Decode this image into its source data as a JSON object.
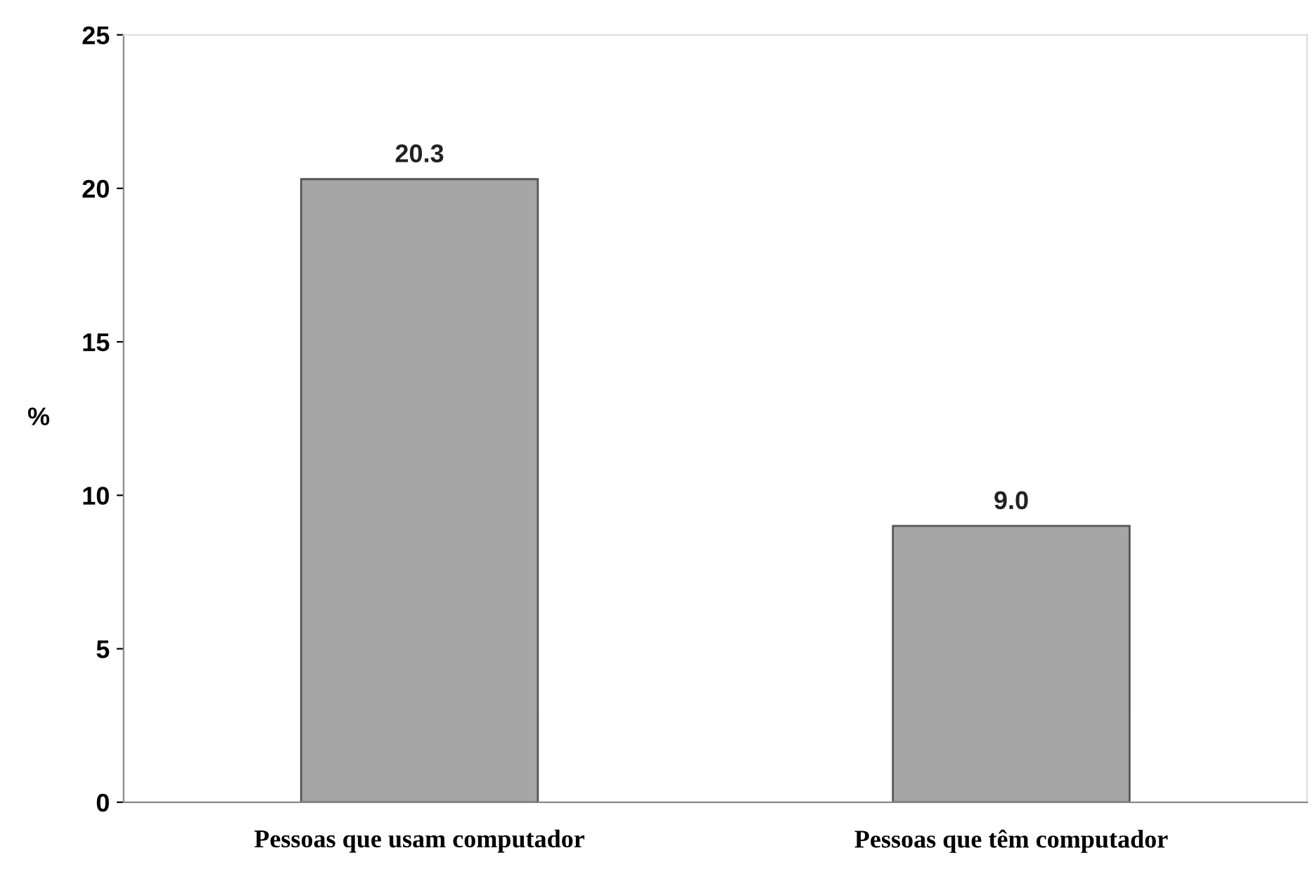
{
  "chart_data": {
    "type": "bar",
    "ylabel": "%",
    "categories": [
      "Pessoas que usam computador",
      "Pessoas que têm computador"
    ],
    "values": [
      20.3,
      9.0
    ],
    "value_labels": [
      "20.3",
      "9.0"
    ],
    "color": "#a6a6a6",
    "ylim": [
      0,
      25
    ],
    "yticks": [
      0,
      5,
      10,
      15,
      20,
      25
    ],
    "grid": false
  }
}
